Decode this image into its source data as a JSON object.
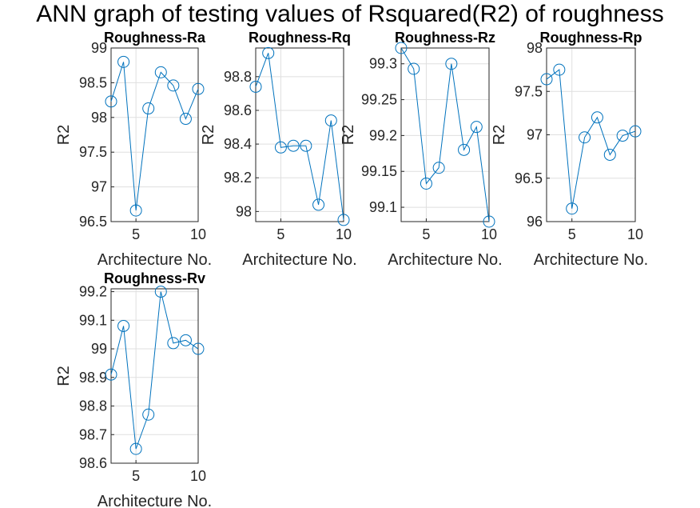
{
  "figure": {
    "title": "ANN graph of testing  values of Rsquared(R2) of roughness",
    "line_color": "#0072BD"
  },
  "chart_data": [
    {
      "type": "line",
      "title": "Roughness-Ra",
      "xlabel": "Architecture No.",
      "ylabel": "R2",
      "x": [
        3,
        4,
        5,
        6,
        7,
        8,
        9,
        10
      ],
      "series": [
        {
          "values": [
            98.23,
            98.8,
            96.66,
            98.13,
            98.65,
            98.46,
            97.98,
            98.41
          ],
          "marker": "circle"
        }
      ],
      "xlim": [
        3,
        10
      ],
      "ylim": [
        96.5,
        99
      ],
      "xticks": [
        5,
        10
      ],
      "yticks": [
        96.5,
        97,
        97.5,
        98,
        98.5,
        99
      ],
      "ytick_labels": [
        "96.5",
        "97",
        "97.5",
        "98",
        "98.5",
        "99"
      ],
      "grid": true
    },
    {
      "type": "line",
      "title": "Roughness-Rq",
      "xlabel": "Architecture No.",
      "ylabel": "R2",
      "x": [
        3,
        4,
        5,
        6,
        7,
        8,
        9,
        10
      ],
      "series": [
        {
          "values": [
            98.74,
            98.94,
            98.38,
            98.39,
            98.39,
            98.04,
            98.54,
            97.95
          ],
          "marker": "circle"
        }
      ],
      "xlim": [
        3,
        10
      ],
      "ylim": [
        97.94,
        98.97
      ],
      "xticks": [
        5,
        10
      ],
      "yticks": [
        98,
        98.2,
        98.4,
        98.6,
        98.8
      ],
      "ytick_labels": [
        "98",
        "98.2",
        "98.4",
        "98.6",
        "98.8"
      ],
      "grid": true
    },
    {
      "type": "line",
      "title": "Roughness-Rz",
      "xlabel": "Architecture No.",
      "ylabel": "R2",
      "x": [
        3,
        4,
        5,
        6,
        7,
        8,
        9,
        10
      ],
      "series": [
        {
          "values": [
            99.322,
            99.293,
            99.133,
            99.155,
            99.3,
            99.18,
            99.212,
            99.08
          ],
          "marker": "circle"
        }
      ],
      "xlim": [
        3,
        10
      ],
      "ylim": [
        99.08,
        99.322
      ],
      "xticks": [
        5,
        10
      ],
      "yticks": [
        99.1,
        99.15,
        99.2,
        99.25,
        99.3
      ],
      "ytick_labels": [
        "99.1",
        "99.15",
        "99.2",
        "99.25",
        "99.3"
      ],
      "grid": true
    },
    {
      "type": "line",
      "title": "Roughness-Rp",
      "xlabel": "Architecture No.",
      "ylabel": "R2",
      "x": [
        3,
        4,
        5,
        6,
        7,
        8,
        9,
        10
      ],
      "series": [
        {
          "values": [
            97.64,
            97.75,
            96.15,
            96.97,
            97.2,
            96.77,
            96.99,
            97.04
          ],
          "marker": "circle"
        }
      ],
      "xlim": [
        3,
        10
      ],
      "ylim": [
        96,
        98
      ],
      "xticks": [
        5,
        10
      ],
      "yticks": [
        96,
        96.5,
        97,
        97.5,
        98
      ],
      "ytick_labels": [
        "96",
        "96.5",
        "97",
        "97.5",
        "98"
      ],
      "grid": true
    },
    {
      "type": "line",
      "title": "Roughness-Rv",
      "xlabel": "Architecture No.",
      "ylabel": "R2",
      "x": [
        3,
        4,
        5,
        6,
        7,
        8,
        9,
        10
      ],
      "series": [
        {
          "values": [
            98.91,
            99.08,
            98.65,
            98.77,
            99.2,
            99.02,
            99.03,
            99.0
          ],
          "marker": "circle"
        }
      ],
      "xlim": [
        3,
        10
      ],
      "ylim": [
        98.6,
        99.21
      ],
      "xticks": [
        5,
        10
      ],
      "yticks": [
        98.6,
        98.7,
        98.8,
        98.9,
        99,
        99.1,
        99.2
      ],
      "ytick_labels": [
        "98.6",
        "98.7",
        "98.8",
        "98.9",
        "99",
        "99.1",
        "99.2"
      ],
      "grid": true
    }
  ]
}
